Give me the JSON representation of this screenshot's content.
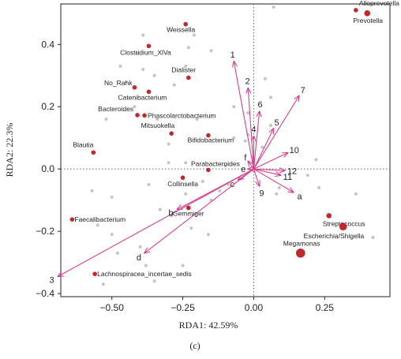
{
  "chart_data": {
    "type": "scatter",
    "xlabel": "RDA1: 42.59%",
    "ylabel": "RDA2: 22.3%",
    "panel_label": "(c)",
    "xlim": [
      -0.68,
      0.48
    ],
    "ylim": [
      -0.41,
      0.53
    ],
    "xticks": [
      -0.5,
      -0.25,
      0.0,
      0.25
    ],
    "xtick_labels": [
      "−0.50",
      "−0.25",
      "0.00",
      "0.25"
    ],
    "yticks": [
      0.4,
      0.2,
      0.0,
      -0.2,
      -0.4
    ],
    "ytick_labels": [
      "0.4",
      "0.2",
      "0.0",
      "−0.2",
      "−0.4"
    ],
    "grid": false,
    "zero_lines": "dotted",
    "colors": {
      "taxa": "#c0282d",
      "vectors": "#d63f8e",
      "background": "#c4c4c4"
    },
    "taxa": [
      {
        "label": "Alloprevotella",
        "x": 0.36,
        "y": 0.51,
        "size": 4
      },
      {
        "label": "Prevotella",
        "x": 0.4,
        "y": 0.5,
        "size": 6
      },
      {
        "label": "Weissella",
        "x": -0.24,
        "y": 0.465,
        "size": 4
      },
      {
        "label": "Clostridium_XlVa",
        "x": -0.37,
        "y": 0.395,
        "size": 4
      },
      {
        "label": "Dialister",
        "x": -0.23,
        "y": 0.293,
        "size": 4
      },
      {
        "label": "No_Rank",
        "x": -0.42,
        "y": 0.262,
        "size": 4
      },
      {
        "label": "Catenibacterium",
        "x": -0.37,
        "y": 0.248,
        "size": 4
      },
      {
        "label": "Bacteroides",
        "x": -0.41,
        "y": 0.173,
        "size": 4
      },
      {
        "label": "Phascolarctobacterium",
        "x": -0.385,
        "y": 0.172,
        "size": 4
      },
      {
        "label": "Mitsuokella",
        "x": -0.29,
        "y": 0.114,
        "size": 4
      },
      {
        "label": "Bifidobacterium",
        "x": -0.16,
        "y": 0.108,
        "size": 4
      },
      {
        "label": "Blautia",
        "x": -0.565,
        "y": 0.053,
        "size": 4
      },
      {
        "label": "Parabacteroides",
        "x": -0.16,
        "y": -0.003,
        "size": 4
      },
      {
        "label": "Collinsella",
        "x": -0.25,
        "y": -0.028,
        "size": 4
      },
      {
        "label": "Gemmiger",
        "x": -0.23,
        "y": -0.125,
        "size": 4
      },
      {
        "label": "Faecalibacterium",
        "x": -0.64,
        "y": -0.162,
        "size": 4
      },
      {
        "label": "Lachnospiracea_incertae_sedis",
        "x": -0.56,
        "y": -0.337,
        "size": 4
      },
      {
        "label": "Streptococcus",
        "x": 0.265,
        "y": -0.15,
        "size": 5
      },
      {
        "label": "Escherichia/Shigella",
        "x": 0.315,
        "y": -0.185,
        "size": 8
      },
      {
        "label": "Megamonas",
        "x": 0.165,
        "y": -0.27,
        "size": 10
      }
    ],
    "vectors": [
      {
        "label": "1",
        "x": -0.07,
        "y": 0.345
      },
      {
        "label": "2",
        "x": -0.02,
        "y": 0.26
      },
      {
        "label": "3",
        "x": -0.69,
        "y": -0.345
      },
      {
        "label": "4",
        "x": 0.0,
        "y": 0.105
      },
      {
        "label": "5",
        "x": 0.07,
        "y": 0.13
      },
      {
        "label": "6",
        "x": 0.02,
        "y": 0.185
      },
      {
        "label": "7",
        "x": 0.16,
        "y": 0.235
      },
      {
        "label": "9",
        "x": 0.02,
        "y": -0.055
      },
      {
        "label": "10",
        "x": 0.12,
        "y": 0.052
      },
      {
        "label": "11",
        "x": 0.095,
        "y": -0.02
      },
      {
        "label": "12",
        "x": 0.11,
        "y": -0.005
      },
      {
        "label": "a",
        "x": 0.14,
        "y": -0.075
      },
      {
        "label": "b",
        "x": -0.27,
        "y": -0.13
      },
      {
        "label": "c",
        "x": -0.055,
        "y": -0.035
      },
      {
        "label": "d",
        "x": -0.385,
        "y": -0.27
      },
      {
        "label": "e",
        "x": -0.02,
        "y": 0.0
      },
      {
        "label": "f",
        "x": -0.02,
        "y": 0.025
      }
    ],
    "background_points": [
      [
        0.07,
        0.52
      ],
      [
        -0.39,
        0.43
      ],
      [
        -0.21,
        0.43
      ],
      [
        -0.23,
        0.39
      ],
      [
        -0.15,
        0.38
      ],
      [
        -0.41,
        0.37
      ],
      [
        -0.47,
        0.33
      ],
      [
        -0.39,
        0.32
      ],
      [
        -0.24,
        0.33
      ],
      [
        -0.35,
        0.3
      ],
      [
        -0.28,
        0.27
      ],
      [
        -0.45,
        0.28
      ],
      [
        0.04,
        0.29
      ],
      [
        0.06,
        0.23
      ],
      [
        -0.07,
        0.2
      ],
      [
        -0.02,
        0.18
      ],
      [
        -0.34,
        0.16
      ],
      [
        -0.42,
        0.2
      ],
      [
        -0.52,
        0.16
      ],
      [
        0.06,
        0.14
      ],
      [
        -0.03,
        0.09
      ],
      [
        -0.07,
        0.1
      ],
      [
        0.03,
        0.07
      ],
      [
        -0.3,
        0.08
      ],
      [
        -0.24,
        0.02
      ],
      [
        -0.3,
        0.02
      ],
      [
        -0.1,
        0.01
      ],
      [
        -0.18,
        -0.04
      ],
      [
        0.19,
        -0.02
      ],
      [
        0.22,
        0.03
      ],
      [
        -0.37,
        -0.05
      ],
      [
        0.08,
        -0.08
      ],
      [
        -0.24,
        -0.08
      ],
      [
        -0.15,
        -0.1
      ],
      [
        -0.5,
        -0.09
      ],
      [
        -0.33,
        -0.13
      ],
      [
        -0.29,
        -0.15
      ],
      [
        -0.22,
        -0.19
      ],
      [
        -0.16,
        -0.21
      ],
      [
        -0.4,
        -0.25
      ],
      [
        -0.55,
        -0.18
      ],
      [
        -0.5,
        -0.21
      ],
      [
        -0.48,
        -0.27
      ],
      [
        -0.38,
        -0.31
      ],
      [
        -0.25,
        -0.31
      ],
      [
        -0.35,
        -0.36
      ],
      [
        -0.53,
        -0.37
      ],
      [
        -0.57,
        -0.07
      ],
      [
        -0.12,
        -0.07
      ],
      [
        0.36,
        -0.08
      ],
      [
        0.09,
        -0.06
      ],
      [
        0.42,
        -0.22
      ],
      [
        0.23,
        -0.06
      ],
      [
        -0.09,
        -0.05
      ],
      [
        -0.2,
        0.16
      ],
      [
        -0.02,
        0.11
      ]
    ]
  }
}
